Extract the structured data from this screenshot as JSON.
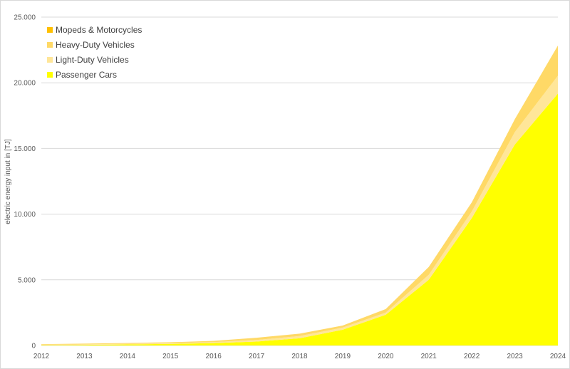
{
  "chart_data": {
    "type": "area",
    "stacked": true,
    "title": "",
    "xlabel": "",
    "ylabel": "electric energy input in [TJ]",
    "ylim": [
      0,
      25000
    ],
    "yticks": [
      "0",
      "5.000",
      "10.000",
      "15.000",
      "20.000",
      "25.000"
    ],
    "categories": [
      "2012",
      "2013",
      "2014",
      "2015",
      "2016",
      "2017",
      "2018",
      "2019",
      "2020",
      "2021",
      "2022",
      "2023",
      "2024"
    ],
    "grid": true,
    "legend_position": "top-left inside",
    "series": [
      {
        "name": "Passenger Cars",
        "color": "#FFFF00",
        "values": [
          30,
          50,
          80,
          120,
          180,
          300,
          550,
          1200,
          2340,
          5000,
          9700,
          15300,
          19180
        ]
      },
      {
        "name": "Light-Duty Vehicles",
        "color": "#FFE699",
        "values": [
          30,
          40,
          50,
          60,
          80,
          120,
          170,
          160,
          160,
          380,
          500,
          950,
          1360
        ]
      },
      {
        "name": "Heavy-Duty Vehicles",
        "color": "#FFD966",
        "values": [
          40,
          50,
          60,
          70,
          90,
          170,
          180,
          160,
          270,
          600,
          700,
          980,
          2290
        ]
      },
      {
        "name": "Mopeds & Motorcycles",
        "color": "#FFC000",
        "values": [
          0,
          0,
          0,
          0,
          0,
          0,
          0,
          0,
          0,
          0,
          0,
          0,
          0
        ]
      }
    ]
  },
  "legend": [
    {
      "label": "Mopeds & Motorcycles",
      "color": "#FFC000"
    },
    {
      "label": "Heavy-Duty Vehicles",
      "color": "#FFD966"
    },
    {
      "label": "Light-Duty Vehicles",
      "color": "#FFE699"
    },
    {
      "label": "Passenger Cars",
      "color": "#FFFF00"
    }
  ]
}
